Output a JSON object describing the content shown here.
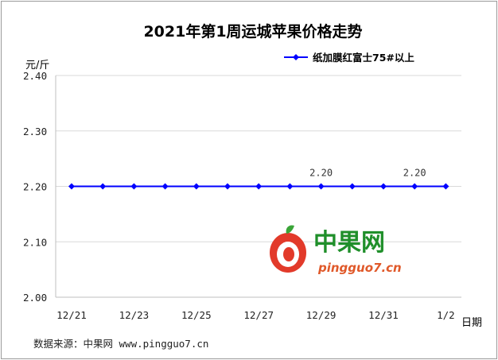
{
  "chart_data": {
    "type": "line",
    "title": "2021年第1周运城苹果价格走势",
    "ylabel": "元/斤",
    "xlabel": "日期",
    "ylim": [
      2.0,
      2.4
    ],
    "y_ticks": [
      "2.00",
      "2.10",
      "2.20",
      "2.30",
      "2.40"
    ],
    "x_tick_labels": [
      "12/21",
      "12/23",
      "12/25",
      "12/27",
      "12/29",
      "12/31",
      "1/2"
    ],
    "grid": true,
    "legend_position": "top-right",
    "series": [
      {
        "name": "纸加膜红富士75#以上",
        "color": "#0000ff",
        "values": [
          2.2,
          2.2,
          2.2,
          2.2,
          2.2,
          2.2,
          2.2,
          2.2,
          2.2,
          2.2,
          2.2,
          2.2,
          2.2
        ],
        "data_labels": [
          {
            "index": 8,
            "text": "2.20"
          },
          {
            "index": 11,
            "text": "2.20"
          }
        ]
      }
    ]
  },
  "source_text": "数据来源：中果网 www.pingguo7.cn",
  "watermark": {
    "name": "中果网",
    "url": "pingguo7.cn",
    "green": "#1f8f2a",
    "red": "#e0592a"
  }
}
